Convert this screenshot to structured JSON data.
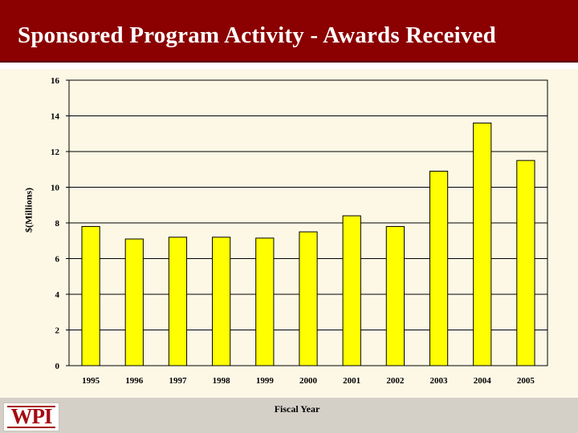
{
  "slide": {
    "title": "Sponsored Program Activity  - Awards Received",
    "logo_text": "WPI"
  },
  "colors": {
    "title_bar": "#8b0000",
    "chart_background": "#fdf8e6",
    "bar_fill": "#ffff00",
    "bar_stroke": "#000000",
    "footer": "#d4d0c8",
    "logo": "#a50a10"
  },
  "chart_data": {
    "type": "bar",
    "title": "",
    "xlabel": "Fiscal Year",
    "ylabel": "$(Millions)",
    "categories": [
      "1995",
      "1996",
      "1997",
      "1998",
      "1999",
      "2000",
      "2001",
      "2002",
      "2003",
      "2004",
      "2005"
    ],
    "values": [
      7.8,
      7.1,
      7.2,
      7.2,
      7.15,
      7.5,
      8.4,
      7.8,
      10.9,
      13.6,
      11.5
    ],
    "ylim": [
      0,
      16
    ],
    "yticks": [
      0,
      2,
      4,
      6,
      8,
      10,
      12,
      14,
      16
    ],
    "grid": true,
    "legend": "none"
  }
}
